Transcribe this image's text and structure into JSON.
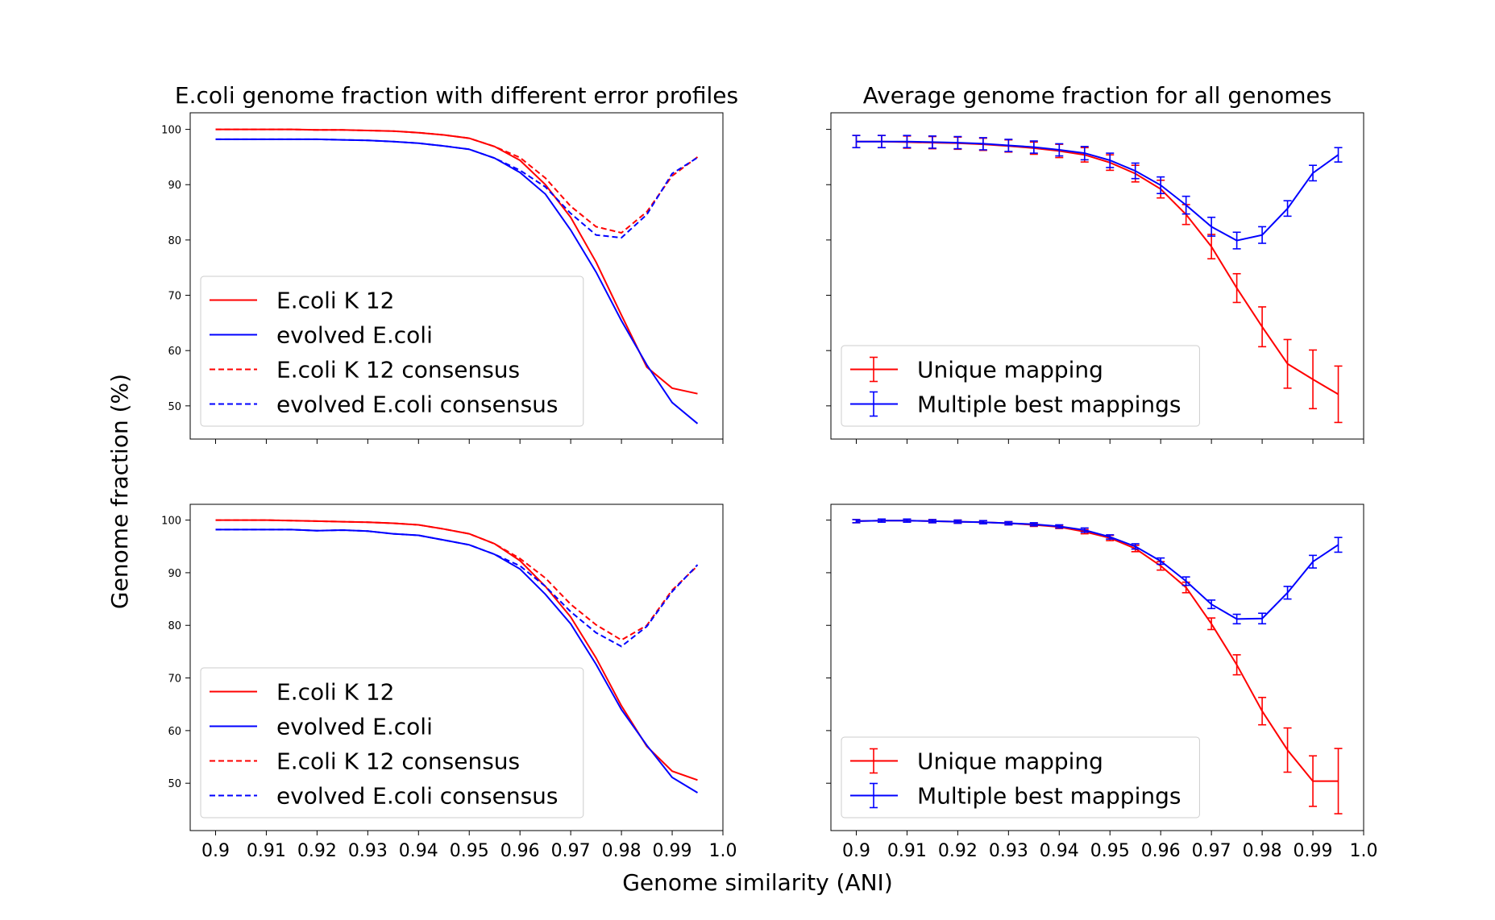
{
  "figure": {
    "ylabel": "Genome fraction (%)",
    "xlabel": "Genome similarity (ANI)"
  },
  "chart_data": [
    {
      "type": "line",
      "panel": "top-left",
      "title": "E.coli genome fraction with different error profiles",
      "xlim": [
        0.895,
        1.0
      ],
      "ylim": [
        44,
        103
      ],
      "xticks": [
        0.9,
        0.91,
        0.92,
        0.93,
        0.94,
        0.95,
        0.96,
        0.97,
        0.98,
        0.99,
        1.0
      ],
      "xtick_labels": [
        "0.9",
        "0.91",
        "0.92",
        "0.93",
        "0.94",
        "0.95",
        "0.96",
        "0.97",
        "0.98",
        "0.99",
        "1.0"
      ],
      "show_xtick_labels": false,
      "yticks": [
        50,
        60,
        70,
        80,
        90,
        100
      ],
      "ytick_labels": [
        "50",
        "60",
        "70",
        "80",
        "90",
        "100"
      ],
      "legend_position": "lower-left",
      "x": [
        0.9,
        0.905,
        0.91,
        0.915,
        0.92,
        0.925,
        0.93,
        0.935,
        0.94,
        0.945,
        0.95,
        0.955,
        0.96,
        0.965,
        0.97,
        0.975,
        0.98,
        0.985,
        0.99,
        0.995
      ],
      "series": [
        {
          "name": "E.coli K 12",
          "color": "#ff0000",
          "dashed": false,
          "values": [
            100.0,
            100.0,
            100.0,
            100.0,
            99.9,
            99.9,
            99.8,
            99.7,
            99.4,
            99.0,
            98.4,
            96.9,
            94.4,
            90.0,
            84.1,
            76.0,
            66.4,
            57.0,
            53.2,
            52.2
          ]
        },
        {
          "name": "evolved E.coli",
          "color": "#0000ff",
          "dashed": false,
          "values": [
            98.2,
            98.2,
            98.2,
            98.2,
            98.2,
            98.1,
            98.0,
            97.8,
            97.5,
            97.0,
            96.4,
            94.8,
            92.2,
            88.3,
            81.8,
            74.2,
            65.4,
            57.4,
            50.6,
            46.8
          ]
        },
        {
          "name": "E.coli K 12 consensus",
          "color": "#ff0000",
          "dashed": true,
          "values": [
            100.0,
            100.0,
            100.0,
            100.0,
            99.9,
            99.9,
            99.8,
            99.7,
            99.4,
            99.0,
            98.4,
            96.9,
            94.9,
            91.2,
            86.1,
            82.4,
            81.3,
            85.1,
            91.6,
            95.0
          ]
        },
        {
          "name": "evolved E.coli consensus",
          "color": "#0000ff",
          "dashed": true,
          "values": [
            98.2,
            98.2,
            98.2,
            98.2,
            98.2,
            98.1,
            98.0,
            97.8,
            97.5,
            97.0,
            96.4,
            94.8,
            92.6,
            89.6,
            84.8,
            80.9,
            80.4,
            84.6,
            92.0,
            94.9
          ]
        }
      ]
    },
    {
      "type": "line",
      "panel": "top-right",
      "title": "Average genome fraction for all genomes",
      "xlim": [
        0.895,
        1.0
      ],
      "ylim": [
        44,
        103
      ],
      "xticks": [
        0.9,
        0.91,
        0.92,
        0.93,
        0.94,
        0.95,
        0.96,
        0.97,
        0.98,
        0.99,
        1.0
      ],
      "xtick_labels": [
        "0.9",
        "0.91",
        "0.92",
        "0.93",
        "0.94",
        "0.95",
        "0.96",
        "0.97",
        "0.98",
        "0.99",
        "1.0"
      ],
      "show_xtick_labels": false,
      "yticks": [
        50,
        60,
        70,
        80,
        90,
        100
      ],
      "show_ytick_labels": false,
      "legend_position": "lower-left",
      "errorbars": true,
      "x": [
        0.9,
        0.905,
        0.91,
        0.915,
        0.92,
        0.925,
        0.93,
        0.935,
        0.94,
        0.945,
        0.95,
        0.955,
        0.96,
        0.965,
        0.97,
        0.975,
        0.98,
        0.985,
        0.99,
        0.995
      ],
      "series": [
        {
          "name": "Unique mapping",
          "color": "#ff0000",
          "dashed": false,
          "values": [
            97.8,
            97.8,
            97.7,
            97.6,
            97.5,
            97.3,
            97.0,
            96.6,
            96.1,
            95.4,
            94.0,
            92.0,
            89.2,
            84.6,
            78.8,
            71.3,
            64.3,
            57.6,
            54.8,
            52.1
          ],
          "errors": [
            1.1,
            1.1,
            1.1,
            1.1,
            1.1,
            1.1,
            1.1,
            1.1,
            1.2,
            1.3,
            1.4,
            1.5,
            1.6,
            1.8,
            2.2,
            2.6,
            3.6,
            4.4,
            5.3,
            5.1
          ]
        },
        {
          "name": "Multiple best mappings",
          "color": "#0000ff",
          "dashed": false,
          "values": [
            97.8,
            97.8,
            97.8,
            97.7,
            97.6,
            97.4,
            97.1,
            96.8,
            96.3,
            95.7,
            94.4,
            92.5,
            89.9,
            86.3,
            82.4,
            79.9,
            80.9,
            85.7,
            92.1,
            95.4
          ],
          "errors": [
            1.1,
            1.1,
            1.1,
            1.1,
            1.1,
            1.1,
            1.1,
            1.1,
            1.1,
            1.2,
            1.3,
            1.4,
            1.5,
            1.6,
            1.7,
            1.5,
            1.5,
            1.4,
            1.4,
            1.3
          ]
        }
      ]
    },
    {
      "type": "line",
      "panel": "bottom-left",
      "title": "",
      "xlim": [
        0.895,
        1.0
      ],
      "ylim": [
        41,
        103
      ],
      "xticks": [
        0.9,
        0.91,
        0.92,
        0.93,
        0.94,
        0.95,
        0.96,
        0.97,
        0.98,
        0.99,
        1.0
      ],
      "xtick_labels": [
        "0.9",
        "0.91",
        "0.92",
        "0.93",
        "0.94",
        "0.95",
        "0.96",
        "0.97",
        "0.98",
        "0.99",
        "1.0"
      ],
      "show_xtick_labels": true,
      "yticks": [
        50,
        60,
        70,
        80,
        90,
        100
      ],
      "ytick_labels": [
        "50",
        "60",
        "70",
        "80",
        "90",
        "100"
      ],
      "legend_position": "lower-left",
      "x": [
        0.9,
        0.905,
        0.91,
        0.915,
        0.92,
        0.925,
        0.93,
        0.935,
        0.94,
        0.945,
        0.95,
        0.955,
        0.96,
        0.965,
        0.97,
        0.975,
        0.98,
        0.985,
        0.99,
        0.995
      ],
      "series": [
        {
          "name": "E.coli K 12",
          "color": "#ff0000",
          "dashed": false,
          "values": [
            100.0,
            100.0,
            100.0,
            99.9,
            99.8,
            99.7,
            99.6,
            99.4,
            99.1,
            98.3,
            97.4,
            95.5,
            92.3,
            87.4,
            81.6,
            73.8,
            64.7,
            57.0,
            52.3,
            50.6
          ]
        },
        {
          "name": "evolved E.coli",
          "color": "#0000ff",
          "dashed": false,
          "values": [
            98.2,
            98.2,
            98.2,
            98.2,
            98.0,
            98.1,
            97.9,
            97.4,
            97.1,
            96.2,
            95.3,
            93.5,
            90.7,
            85.9,
            80.3,
            72.6,
            64.0,
            57.2,
            51.1,
            48.2
          ]
        },
        {
          "name": "E.coli K 12 consensus",
          "color": "#ff0000",
          "dashed": true,
          "values": [
            100.0,
            100.0,
            100.0,
            99.9,
            99.8,
            99.7,
            99.6,
            99.4,
            99.1,
            98.3,
            97.4,
            95.5,
            92.7,
            89.0,
            84.0,
            80.1,
            77.2,
            80.0,
            86.7,
            91.3
          ]
        },
        {
          "name": "evolved E.coli consensus",
          "color": "#0000ff",
          "dashed": true,
          "values": [
            98.2,
            98.2,
            98.2,
            98.2,
            98.0,
            98.1,
            97.9,
            97.4,
            97.1,
            96.2,
            95.3,
            93.5,
            91.3,
            87.4,
            82.6,
            78.6,
            76.0,
            79.8,
            86.4,
            91.5
          ]
        }
      ]
    },
    {
      "type": "line",
      "panel": "bottom-right",
      "title": "",
      "xlim": [
        0.895,
        1.0
      ],
      "ylim": [
        41,
        103
      ],
      "xticks": [
        0.9,
        0.91,
        0.92,
        0.93,
        0.94,
        0.95,
        0.96,
        0.97,
        0.98,
        0.99,
        1.0
      ],
      "xtick_labels": [
        "0.9",
        "0.91",
        "0.92",
        "0.93",
        "0.94",
        "0.95",
        "0.96",
        "0.97",
        "0.98",
        "0.99",
        "1.0"
      ],
      "show_xtick_labels": true,
      "yticks": [
        50,
        60,
        70,
        80,
        90,
        100
      ],
      "show_ytick_labels": false,
      "legend_position": "lower-left",
      "errorbars": true,
      "x": [
        0.9,
        0.905,
        0.91,
        0.915,
        0.92,
        0.925,
        0.93,
        0.935,
        0.94,
        0.945,
        0.95,
        0.955,
        0.96,
        0.965,
        0.97,
        0.975,
        0.98,
        0.985,
        0.99,
        0.995
      ],
      "series": [
        {
          "name": "Unique mapping",
          "color": "#ff0000",
          "dashed": false,
          "values": [
            99.8,
            99.9,
            99.9,
            99.8,
            99.7,
            99.6,
            99.4,
            99.1,
            98.7,
            97.8,
            96.6,
            94.6,
            91.3,
            87.2,
            80.3,
            72.5,
            63.7,
            56.3,
            50.4,
            50.4
          ],
          "errors": [
            0.3,
            0.3,
            0.3,
            0.3,
            0.3,
            0.3,
            0.3,
            0.3,
            0.3,
            0.4,
            0.5,
            0.6,
            0.8,
            1.0,
            1.1,
            1.9,
            2.6,
            4.2,
            4.8,
            6.2
          ]
        },
        {
          "name": "Multiple best mappings",
          "color": "#0000ff",
          "dashed": false,
          "values": [
            99.8,
            99.9,
            99.9,
            99.8,
            99.7,
            99.6,
            99.4,
            99.2,
            98.8,
            98.1,
            96.8,
            95.0,
            92.2,
            88.4,
            84.0,
            81.2,
            81.3,
            86.2,
            92.1,
            95.3
          ],
          "errors": [
            0.3,
            0.3,
            0.3,
            0.3,
            0.3,
            0.3,
            0.3,
            0.3,
            0.3,
            0.4,
            0.4,
            0.5,
            0.6,
            0.8,
            0.8,
            0.9,
            1.0,
            1.2,
            1.2,
            1.4
          ]
        }
      ]
    }
  ]
}
